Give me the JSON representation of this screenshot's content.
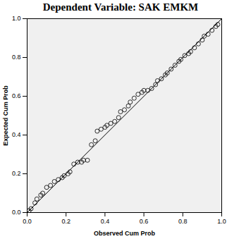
{
  "chart_data": {
    "type": "scatter",
    "title": "Dependent Variable: SAK EMKM",
    "x_label": "Observed Cum Prob",
    "y_label": "Expected Cum Prob",
    "x": [
      0.01,
      0.02,
      0.04,
      0.05,
      0.07,
      0.08,
      0.1,
      0.12,
      0.14,
      0.16,
      0.18,
      0.19,
      0.21,
      0.22,
      0.24,
      0.26,
      0.28,
      0.29,
      0.31,
      0.33,
      0.35,
      0.36,
      0.38,
      0.4,
      0.41,
      0.43,
      0.45,
      0.47,
      0.48,
      0.5,
      0.52,
      0.53,
      0.55,
      0.57,
      0.59,
      0.6,
      0.62,
      0.64,
      0.66,
      0.67,
      0.69,
      0.71,
      0.72,
      0.74,
      0.76,
      0.78,
      0.79,
      0.81,
      0.83,
      0.84,
      0.86,
      0.88,
      0.9,
      0.91,
      0.93,
      0.95,
      0.97,
      0.98
    ],
    "values": [
      0.01,
      0.02,
      0.05,
      0.07,
      0.09,
      0.1,
      0.13,
      0.14,
      0.16,
      0.17,
      0.18,
      0.19,
      0.2,
      0.21,
      0.25,
      0.26,
      0.26,
      0.27,
      0.27,
      0.35,
      0.37,
      0.42,
      0.43,
      0.44,
      0.45,
      0.46,
      0.47,
      0.49,
      0.52,
      0.53,
      0.55,
      0.57,
      0.59,
      0.61,
      0.62,
      0.63,
      0.63,
      0.64,
      0.66,
      0.68,
      0.69,
      0.71,
      0.72,
      0.74,
      0.76,
      0.78,
      0.79,
      0.81,
      0.82,
      0.83,
      0.85,
      0.87,
      0.89,
      0.91,
      0.92,
      0.94,
      0.96,
      0.97
    ],
    "reference_line": {
      "x": [
        0,
        1
      ],
      "y": [
        0,
        1
      ]
    },
    "marker": "hollow circle",
    "color": "#000000",
    "xlim": [
      0,
      1
    ],
    "ylim": [
      0,
      1
    ],
    "xticks": [
      {
        "value": 0,
        "label": "0.0"
      },
      0.2,
      0.4,
      0.6,
      0.8,
      {
        "value": 1,
        "label": "1.0"
      }
    ],
    "yticks": [
      {
        "value": 0,
        "label": "0.0"
      },
      0.2,
      0.4,
      0.6,
      0.8,
      {
        "value": 1,
        "label": "1.0"
      }
    ],
    "grid": false
  }
}
